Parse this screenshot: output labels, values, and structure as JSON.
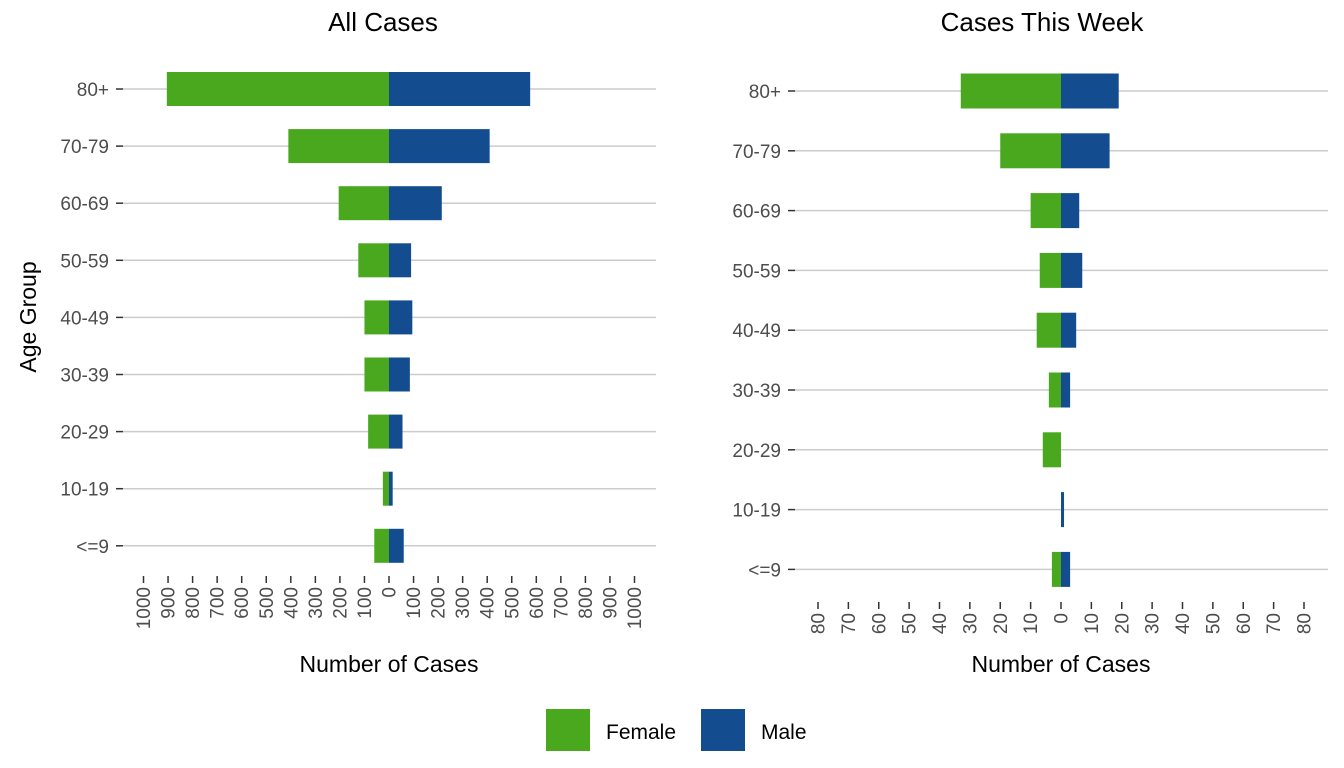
{
  "y_axis_label": "Age Group",
  "legend": [
    {
      "label": "Female",
      "color": "#4aa81f"
    },
    {
      "label": "Male",
      "color": "#134d8f"
    }
  ],
  "chart_data": [
    {
      "type": "bar",
      "title": "All Cases",
      "xlabel": "Number of Cases",
      "ylabel": "Age Group",
      "orientation": "horizontal-pyramid",
      "categories": [
        "<=9",
        "10-19",
        "20-29",
        "30-39",
        "40-49",
        "50-59",
        "60-69",
        "70-79",
        "80+"
      ],
      "series": [
        {
          "name": "Female",
          "color": "#4aa81f",
          "values": [
            -60,
            -25,
            -85,
            -100,
            -100,
            -125,
            -205,
            -410,
            -905
          ]
        },
        {
          "name": "Male",
          "color": "#134d8f",
          "values": [
            60,
            15,
            55,
            85,
            95,
            90,
            215,
            410,
            575
          ]
        }
      ],
      "xlim": [
        -1000,
        1000
      ],
      "xticks": [
        -1000,
        -900,
        -800,
        -700,
        -600,
        -500,
        -400,
        -300,
        -200,
        -100,
        0,
        100,
        200,
        300,
        400,
        500,
        600,
        700,
        800,
        900,
        1000
      ],
      "xtick_labels": [
        "1000",
        "900",
        "800",
        "700",
        "600",
        "500",
        "400",
        "300",
        "200",
        "100",
        "0",
        "100",
        "200",
        "300",
        "400",
        "500",
        "600",
        "700",
        "800",
        "900",
        "1000"
      ],
      "grid": "horizontal",
      "legend_position": "bottom"
    },
    {
      "type": "bar",
      "title": "Cases This Week",
      "xlabel": "Number of Cases",
      "ylabel": "",
      "orientation": "horizontal-pyramid",
      "categories": [
        "<=9",
        "10-19",
        "20-29",
        "30-39",
        "40-49",
        "50-59",
        "60-69",
        "70-79",
        "80+"
      ],
      "series": [
        {
          "name": "Female",
          "color": "#4aa81f",
          "values": [
            -3,
            0,
            -6,
            -4,
            -8,
            -7,
            -10,
            -20,
            -33
          ]
        },
        {
          "name": "Male",
          "color": "#134d8f",
          "values": [
            3,
            1,
            0,
            3,
            5,
            7,
            6,
            16,
            19
          ]
        }
      ],
      "xlim": [
        -85,
        85
      ],
      "xticks": [
        -80,
        -70,
        -60,
        -50,
        -40,
        -30,
        -20,
        -10,
        0,
        10,
        20,
        30,
        40,
        50,
        60,
        70,
        80
      ],
      "xtick_labels": [
        "80",
        "70",
        "60",
        "50",
        "40",
        "30",
        "20",
        "10",
        "0",
        "10",
        "20",
        "30",
        "40",
        "50",
        "60",
        "70",
        "80"
      ],
      "grid": "horizontal",
      "legend_position": "bottom"
    }
  ]
}
